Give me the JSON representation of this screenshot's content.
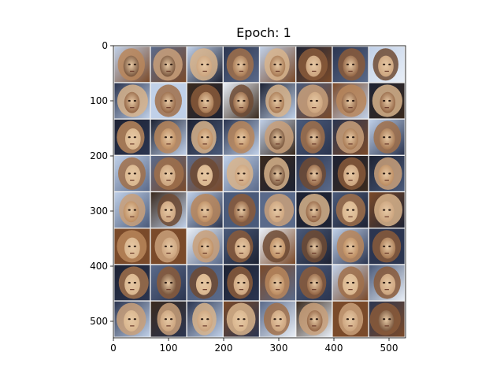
{
  "figure": {
    "title": "Epoch: 1"
  },
  "image_grid": {
    "rows": 8,
    "cols": 8,
    "extent": 530,
    "cell_size": 66,
    "content": "generated face samples"
  },
  "axes": {
    "x_ticks": [
      0,
      100,
      200,
      300,
      400,
      500
    ],
    "y_ticks": [
      0,
      100,
      200,
      300,
      400,
      500
    ],
    "x_tick_labels": [
      "0",
      "100",
      "200",
      "300",
      "400",
      "500"
    ],
    "y_tick_labels": [
      "0",
      "100",
      "200",
      "300",
      "400",
      "500"
    ]
  },
  "palette": {
    "face_tones": [
      "#b8865a",
      "#8a5a3a",
      "#c9a07a",
      "#6e4a32",
      "#d8b48c",
      "#a0704a"
    ],
    "bg_tones": [
      "#2b3550",
      "#1d2233",
      "#4a5a7a",
      "#c0d0e8",
      "#7a4a2a",
      "#3a2a1e",
      "#e8eef6",
      "#5a6a8a"
    ],
    "grid_line": "#f0f0f0"
  }
}
